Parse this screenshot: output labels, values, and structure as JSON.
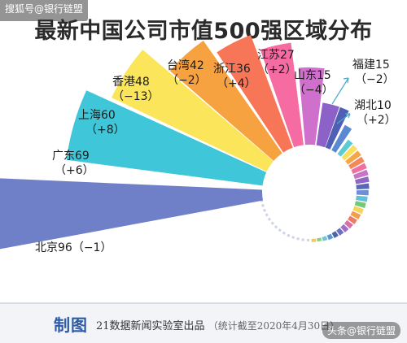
{
  "watermark_top": "搜狐号@银行链盟",
  "watermark_bottom": "头条@银行链盟",
  "footer": {
    "logo": "制图",
    "source": "21数据新闻实验室出品",
    "note": "（统计截至2020年4月30日）"
  },
  "chart_data": {
    "type": "bar",
    "subtype": "radial-bar",
    "title": "最新中国公司市值500强区域分布",
    "categories": [
      "北京",
      "广东",
      "上海",
      "香港",
      "台湾",
      "浙江",
      "江苏",
      "山东",
      "福建",
      "湖北"
    ],
    "values": [
      96,
      69,
      60,
      48,
      42,
      36,
      27,
      15,
      15,
      10
    ],
    "changes": [
      "-1",
      "+6",
      "+8",
      "-13",
      "-2",
      "+4",
      "+2",
      "-4",
      "-2",
      "+2"
    ],
    "labels": [
      "北京96（−1）",
      "广东69",
      "（+6）",
      "上海60",
      "（+8）",
      "香港48",
      "（−13）",
      "台湾42",
      "（−2）",
      "浙江36",
      "（+4）",
      "江苏27",
      "（+2）",
      "山东15",
      "（−4）",
      "福建15",
      "（−2）",
      "湖北10",
      "（+2）"
    ],
    "colors": [
      "#6f7fc8",
      "#3fc6d8",
      "#fbe55b",
      "#f7a240",
      "#f77657",
      "#f76ba3",
      "#cf71cc",
      "#8d62c8",
      "#4f5fb4",
      "#5a88d3"
    ],
    "minor_colors": [
      "#5bcbd6",
      "#f9df5e",
      "#f6a64a",
      "#f4885d",
      "#ef70a0",
      "#c875c6",
      "#9165c7",
      "#5a66b8",
      "#6c8fd6",
      "#64bfd9",
      "#77c97a",
      "#f4d45e",
      "#f39d4f",
      "#ee7b63",
      "#d86fa9",
      "#a06cc7",
      "#6b6fc0",
      "#4b63a8",
      "#5799d2",
      "#6fc6dc",
      "#8bd07d",
      "#f1c95b"
    ]
  }
}
